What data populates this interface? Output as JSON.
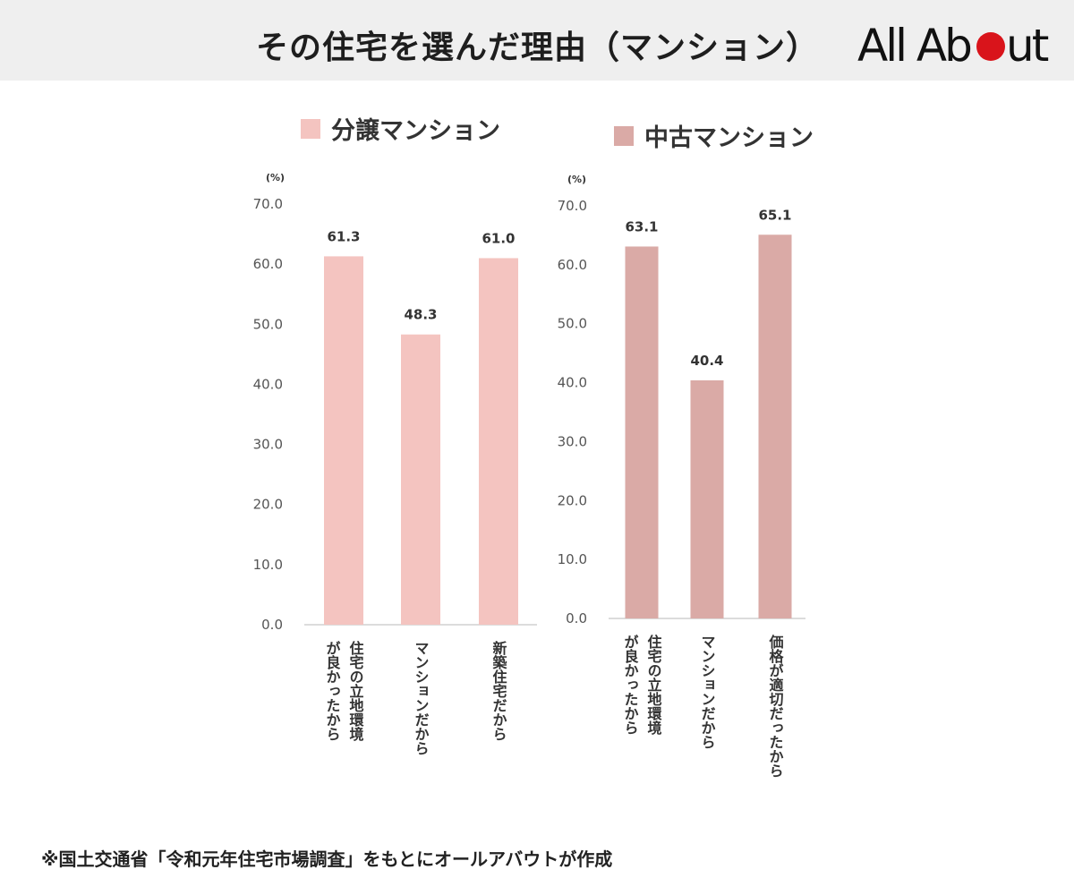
{
  "header": {
    "title": "その住宅を選んだ理由（マンション）",
    "logo_text": "All Ab",
    "logo_text_end": "ut",
    "logo_accent_color": "#d9141b"
  },
  "chart_data": [
    {
      "type": "bar",
      "title": "",
      "legend": "分譲マンション",
      "ylabel": "(%)",
      "ylim": [
        0,
        70
      ],
      "yticks": [
        "70.0",
        "60.0",
        "50.0",
        "40.0",
        "30.0",
        "20.0",
        "10.0",
        "0.0"
      ],
      "categories": [
        [
          "住宅の立地環境",
          "が良かったから"
        ],
        [
          "マンションだから"
        ],
        [
          "新築住宅だから"
        ]
      ],
      "values": [
        61.3,
        48.3,
        61.0
      ],
      "value_labels": [
        "61.3",
        "48.3",
        "61.0"
      ],
      "color": "#f4c4c0"
    },
    {
      "type": "bar",
      "title": "",
      "legend": "中古マンション",
      "ylabel": "(%)",
      "ylim": [
        0,
        70
      ],
      "yticks": [
        "70.0",
        "60.0",
        "50.0",
        "40.0",
        "30.0",
        "20.0",
        "10.0",
        "0.0"
      ],
      "categories": [
        [
          "住宅の立地環境",
          "が良かったから"
        ],
        [
          "マンションだから"
        ],
        [
          "価格が適切だったから"
        ]
      ],
      "values": [
        63.1,
        40.4,
        65.1
      ],
      "value_labels": [
        "63.1",
        "40.4",
        "65.1"
      ],
      "color": "#daaaa6"
    }
  ],
  "footnote": "※国土交通省「令和元年住宅市場調査」をもとにオールアバウトが作成"
}
